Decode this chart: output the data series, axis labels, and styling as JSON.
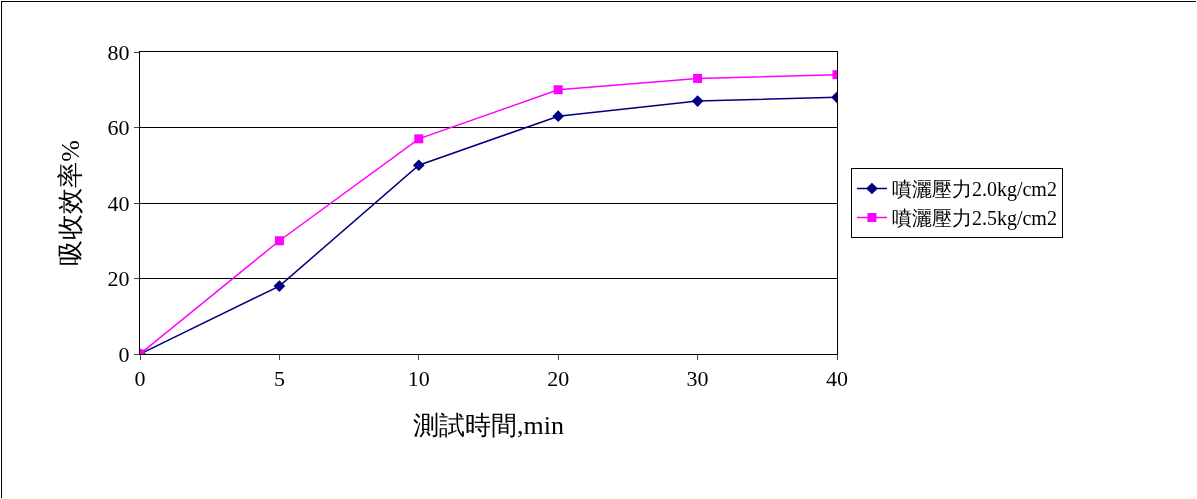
{
  "chart_data": {
    "type": "line",
    "xlabel": "測試時間,min",
    "ylabel": "吸收效率%",
    "categories": [
      "0",
      "5",
      "10",
      "20",
      "30",
      "40"
    ],
    "series": [
      {
        "name": "噴灑壓力2.0kg/cm2",
        "color": "#000080",
        "marker": "diamond",
        "values": [
          0,
          18,
          50,
          63,
          67,
          68
        ]
      },
      {
        "name": "噴灑壓力2.5kg/cm2",
        "color": "#ff00ff",
        "marker": "square",
        "values": [
          0,
          30,
          57,
          70,
          73,
          74
        ]
      }
    ],
    "ylim": [
      0,
      80
    ],
    "yticks": [
      0,
      20,
      40,
      60,
      80
    ],
    "grid": "y",
    "legend": "right",
    "line_style": "solid"
  }
}
